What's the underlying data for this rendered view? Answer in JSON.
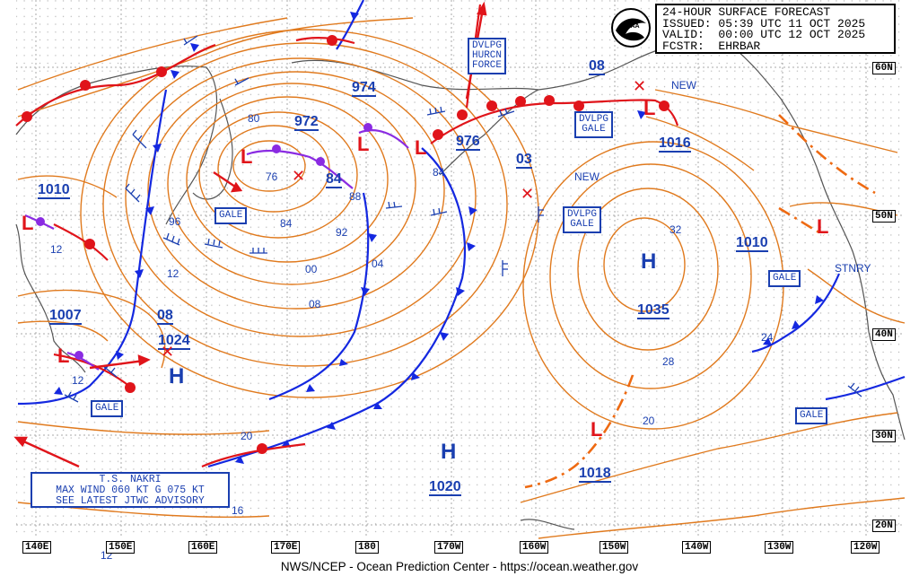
{
  "header": {
    "title": "24-HOUR SURFACE FORECAST",
    "issued": "ISSUED: 05:39 UTC 11 OCT 2025",
    "valid": "VALID:  00:00 UTC 12 OCT 2025",
    "forecaster": "FCSTR:  EHRBAR"
  },
  "logo": {
    "text": "NOAA"
  },
  "footer": {
    "text": "NWS/NCEP - Ocean Prediction Center - https://ocean.weather.gov"
  },
  "tropical_box": {
    "line1": "T.S. NAKRI",
    "line2": "MAX WIND 060 KT G 075 KT",
    "line3": "SEE LATEST JTWC ADVISORY"
  },
  "longitude_labels": [
    "140E",
    "150E",
    "160E",
    "170E",
    "180",
    "170W",
    "160W",
    "150W",
    "140W",
    "130W",
    "120W"
  ],
  "latitude_labels": [
    "60N",
    "50N",
    "40N",
    "30N",
    "20N"
  ],
  "pressure_centers": {
    "low_972": "972",
    "low_84": "84",
    "low_976": "976",
    "low_1010": "1010",
    "low_1007": "1007",
    "low_1016": "1016",
    "low_1018": "1018",
    "high_1035": "1035",
    "high_1024": "1024",
    "high_1020": "1020",
    "high_1010_e": "1010",
    "low_974": "974",
    "low_08_n": "08",
    "low_03": "03",
    "low_08_w": "08"
  },
  "center_letters": {
    "high": "H",
    "low": "L"
  },
  "warnings": {
    "gale": "GALE",
    "dvlpg_hurcn_1": "DVLPG",
    "dvlpg_hurcn_2": "HURCN",
    "dvlpg_hurcn_3": "FORCE",
    "dvlpg_gale_1": "DVLPG",
    "dvlpg_gale_2": "GALE"
  },
  "tags": {
    "new": "NEW",
    "stnry": "STNRY"
  },
  "isobar_labels": {
    "l80": "80",
    "l76": "76",
    "l88": "88",
    "l96": "96",
    "l84a": "84",
    "l84b": "84",
    "l92": "92",
    "l00": "00",
    "l04": "04",
    "l08": "08",
    "l12a": "12",
    "l12b": "12",
    "l12c": "12",
    "l12d": "12",
    "l20a": "20",
    "l20b": "20",
    "l16": "16",
    "l28": "28",
    "l32": "32",
    "l24": "24"
  },
  "colors": {
    "isobar": "#e07a1e",
    "text_blue": "#1a3fb0",
    "cold_front": "#1428e0",
    "warm_front": "#e0141a",
    "occluded": "#8a2be2",
    "grid": "#9a9a9a",
    "land": "#555555"
  }
}
